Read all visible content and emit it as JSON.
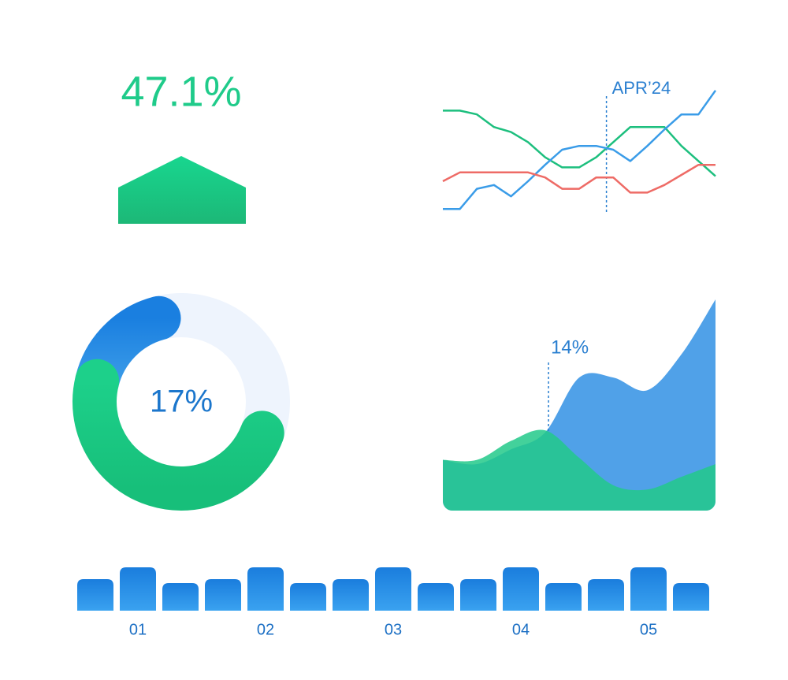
{
  "stat": {
    "label": "47.1%",
    "color": "#1fcb8a"
  },
  "chart_data": [
    {
      "type": "line",
      "x": [
        0,
        1,
        2,
        3,
        4,
        5,
        6,
        7,
        8,
        9,
        10,
        11,
        12,
        13,
        14,
        15,
        16
      ],
      "xlim": [
        0,
        16
      ],
      "ylim": [
        0,
        100
      ],
      "series": [
        {
          "color": "#1dbf7e",
          "values": [
            81,
            81,
            78,
            68,
            64,
            56,
            44,
            36,
            36,
            44,
            56,
            68,
            68,
            68,
            53,
            41,
            29
          ]
        },
        {
          "color": "#3a9ce8",
          "values": [
            3,
            3,
            19,
            22,
            13,
            25,
            38,
            50,
            53,
            53,
            50,
            41,
            53,
            66,
            78,
            78,
            97
          ]
        },
        {
          "color": "#ee6b66",
          "values": [
            25,
            32,
            32,
            32,
            32,
            32,
            28,
            19,
            19,
            28,
            28,
            16,
            16,
            22,
            30,
            38,
            38
          ]
        }
      ],
      "annotation": {
        "text": "APR’24",
        "x": 9.6
      }
    },
    {
      "type": "donut",
      "values": [
        17,
        48
      ],
      "colors": [
        [
          "#1a7fe0",
          "#3a9be8"
        ],
        [
          "#1dd08a",
          "#17bf7a"
        ]
      ],
      "track_color": "#eef4fd",
      "center_label": "17%"
    },
    {
      "type": "area",
      "x": [
        0,
        1,
        2,
        3,
        4,
        5,
        6,
        7,
        8
      ],
      "xlim": [
        0,
        8
      ],
      "ylim": [
        0,
        100
      ],
      "series": [
        {
          "color": "#3d97e6",
          "values": [
            24,
            22,
            29,
            37,
            63,
            63,
            57,
            74,
            100
          ]
        },
        {
          "color": "#22c98a",
          "values": [
            24,
            24,
            33,
            38,
            25,
            12,
            10,
            16,
            22
          ]
        }
      ],
      "annotation": {
        "text": "14%",
        "x": 3.1
      }
    },
    {
      "type": "bar",
      "categories": [
        null,
        "01",
        null,
        null,
        "02",
        null,
        null,
        "03",
        null,
        null,
        "04",
        null,
        null,
        "05",
        null
      ],
      "values": [
        40,
        55,
        35,
        40,
        55,
        35,
        40,
        55,
        35,
        40,
        55,
        35,
        40,
        55,
        35
      ],
      "ylim": [
        0,
        60
      ],
      "color": [
        "#1a7ddd",
        "#3aa2f0"
      ]
    }
  ]
}
